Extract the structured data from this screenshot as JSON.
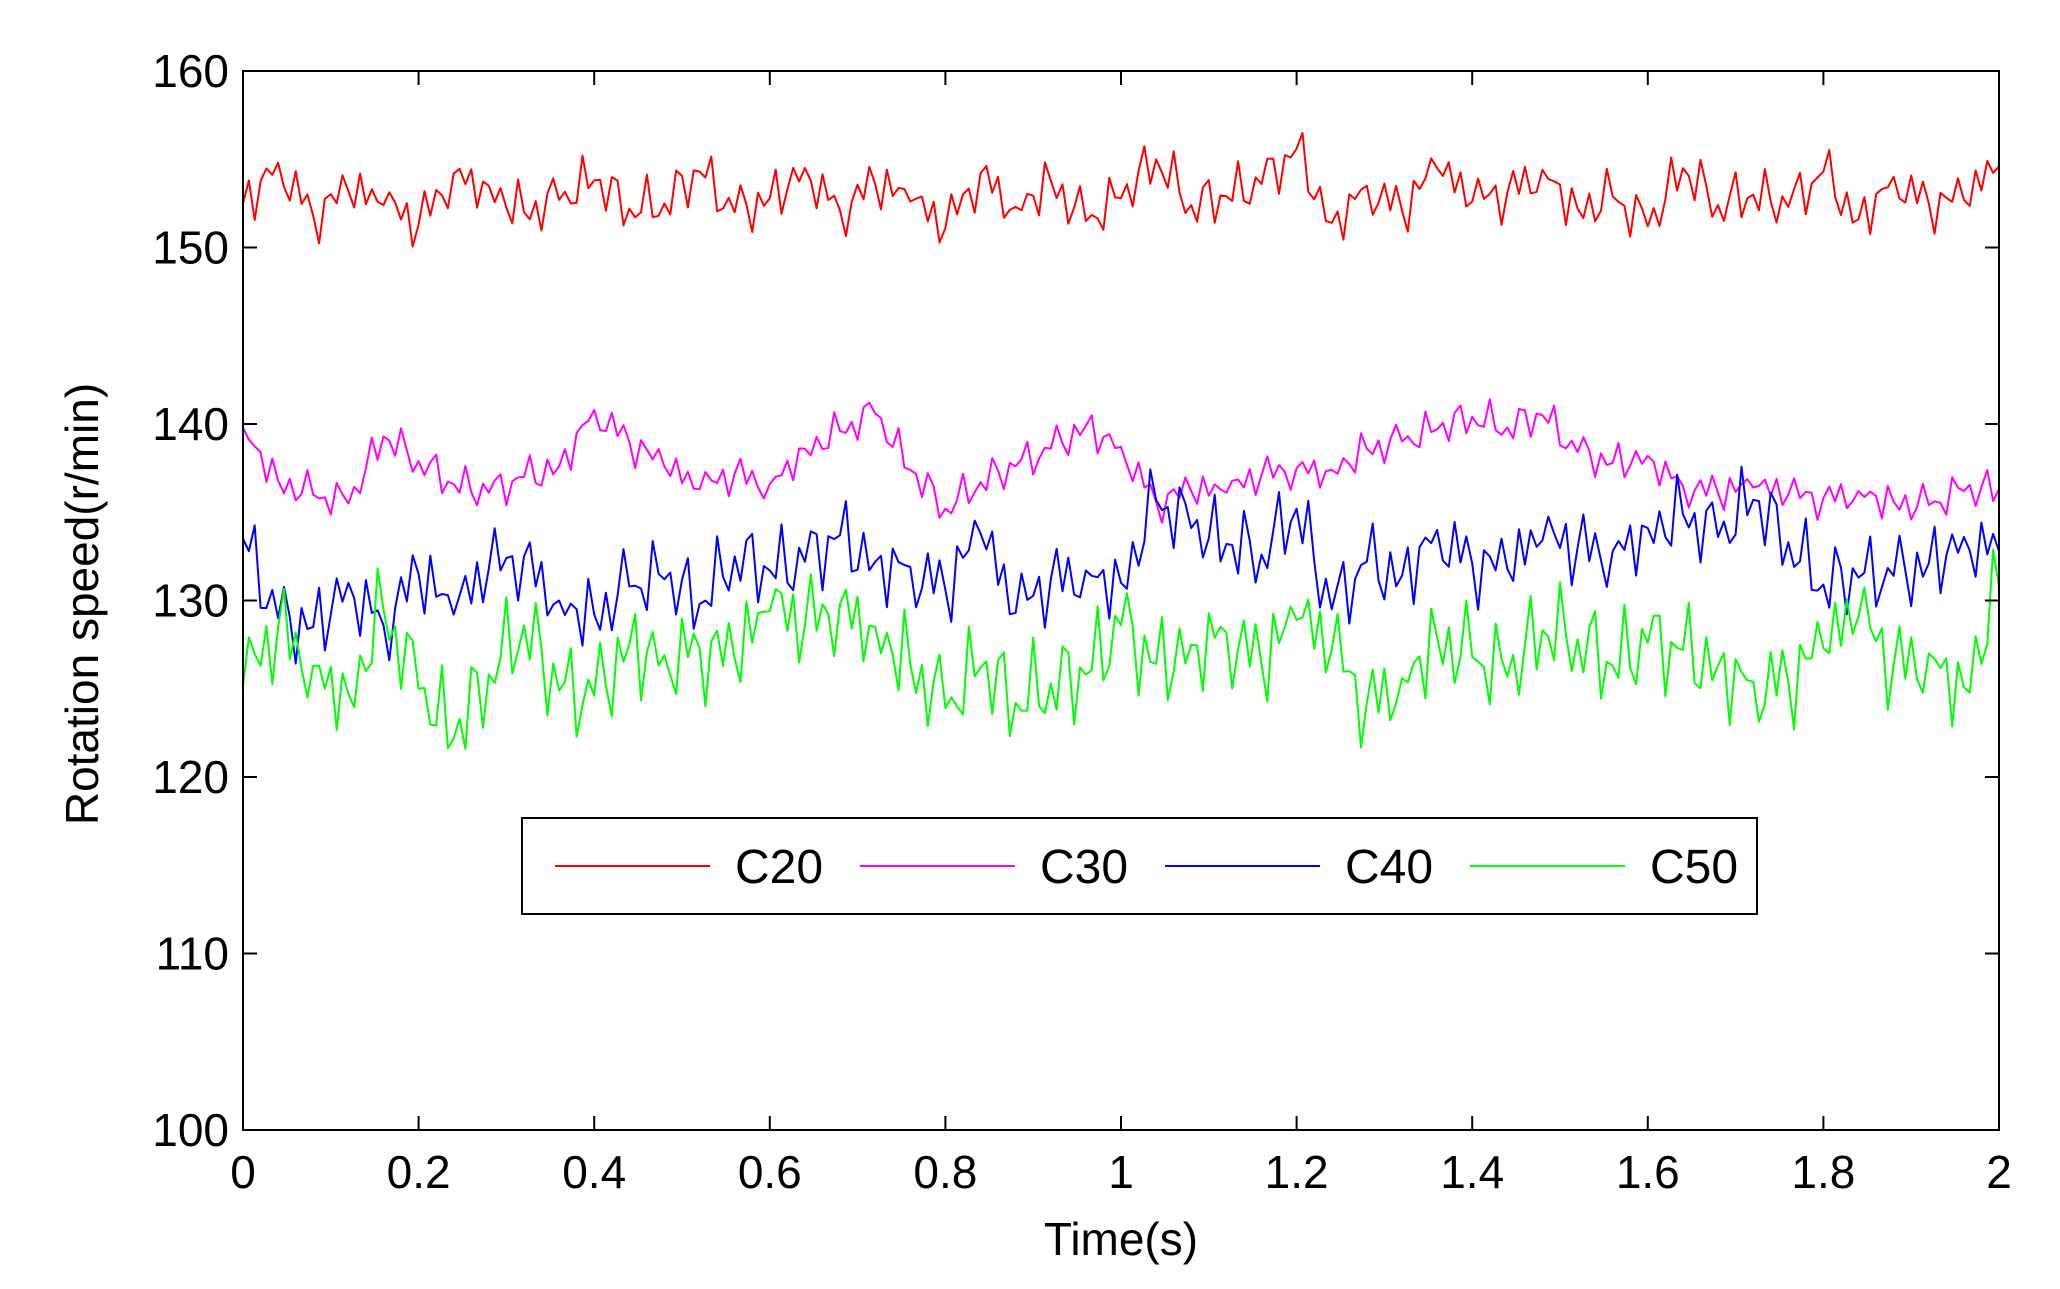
{
  "chart_data": {
    "type": "line",
    "title": "",
    "xlabel": "Time(s)",
    "ylabel": "Rotation speed(r/min)",
    "xlim": [
      0,
      2
    ],
    "ylim": [
      100,
      160
    ],
    "xticks": [
      0,
      0.2,
      0.4,
      0.6,
      0.8,
      1,
      1.2,
      1.4,
      1.6,
      1.8,
      2
    ],
    "xtick_labels": [
      "0",
      "0.2",
      "0.4",
      "0.6",
      "0.8",
      "1",
      "1.2",
      "1.4",
      "1.6",
      "1.8",
      "2"
    ],
    "yticks": [
      100,
      110,
      120,
      130,
      140,
      150,
      160
    ],
    "ytick_labels": [
      "100",
      "110",
      "120",
      "130",
      "140",
      "150",
      "160"
    ],
    "grid": false,
    "legend": {
      "placement": "lower-center",
      "orientation": "horizontal"
    },
    "x": [
      0,
      0.04,
      0.08,
      0.12,
      0.16,
      0.2,
      0.24,
      0.28,
      0.32,
      0.36,
      0.4,
      0.44,
      0.48,
      0.52,
      0.56,
      0.6,
      0.64,
      0.68,
      0.72,
      0.76,
      0.8,
      0.84,
      0.88,
      0.92,
      0.96,
      1,
      1.04,
      1.08,
      1.12,
      1.16,
      1.2,
      1.24,
      1.28,
      1.32,
      1.36,
      1.4,
      1.44,
      1.48,
      1.52,
      1.56,
      1.6,
      1.64,
      1.68,
      1.72,
      1.76,
      1.8,
      1.84,
      1.88,
      1.92,
      1.96,
      2
    ],
    "series": [
      {
        "name": "C20",
        "color": "#ff0000",
        "values": [
          152.5,
          154.8,
          151.8,
          153.2,
          152.4,
          151.3,
          154.2,
          153.5,
          152.0,
          152.7,
          153.8,
          152.2,
          152.5,
          154.3,
          152.0,
          152.8,
          154.5,
          152.1,
          153.6,
          152.6,
          151.1,
          154.2,
          152.3,
          153.8,
          151.5,
          152.8,
          155.0,
          152.4,
          152.9,
          153.6,
          155.6,
          151.4,
          153.5,
          152.1,
          154.5,
          152.6,
          153.1,
          154.4,
          152.2,
          152.9,
          151.2,
          154.5,
          152.4,
          153.0,
          152.3,
          154.3,
          151.6,
          154.0,
          152.5,
          152.7,
          154.6
        ]
      },
      {
        "name": "C30",
        "color": "#ff00ff",
        "values": [
          139.8,
          136.8,
          136.0,
          135.5,
          139.3,
          137.9,
          136.6,
          136.1,
          137.0,
          137.6,
          140.8,
          139.0,
          137.6,
          136.3,
          137.2,
          136.6,
          138.6,
          139.6,
          140.6,
          137.4,
          135.2,
          136.7,
          137.6,
          138.6,
          139.9,
          138.7,
          135.6,
          136.2,
          136.1,
          137.1,
          137.5,
          137.4,
          138.6,
          139.0,
          139.7,
          140.4,
          139.8,
          140.5,
          138.4,
          137.8,
          138.2,
          136.5,
          136.1,
          136.4,
          136.0,
          135.8,
          136.2,
          135.6,
          135.4,
          136.2,
          136.3
        ]
      },
      {
        "name": "C40",
        "color": "#0000ff",
        "values": [
          133.5,
          129.0,
          128.5,
          131.0,
          128.6,
          131.5,
          129.2,
          131.8,
          132.5,
          130.0,
          129.2,
          130.8,
          131.2,
          129.8,
          132.5,
          131.7,
          132.2,
          133.7,
          132.2,
          131.9,
          130.6,
          133.8,
          129.3,
          131.2,
          131.7,
          131.0,
          135.7,
          134.1,
          133.2,
          132.6,
          135.2,
          129.5,
          132.2,
          131.4,
          134.0,
          132.1,
          131.8,
          133.4,
          133.0,
          132.8,
          134.1,
          134.9,
          133.6,
          135.7,
          133.3,
          130.9,
          131.3,
          131.4,
          132.1,
          133.6,
          132.8
        ]
      },
      {
        "name": "C50",
        "color": "#00ff00",
        "values": [
          125.2,
          128.5,
          126.3,
          124.7,
          129.5,
          125.0,
          122.2,
          125.8,
          128.6,
          124.9,
          124.6,
          127.5,
          126.9,
          127.3,
          126.7,
          129.4,
          128.6,
          129.8,
          128.5,
          126.4,
          123.9,
          126.2,
          124.2,
          125.3,
          125.8,
          128.6,
          126.4,
          127.5,
          128.2,
          126.4,
          128.9,
          127.2,
          124.2,
          125.6,
          127.9,
          126.8,
          125.7,
          128.3,
          127.8,
          126.3,
          127.6,
          127.2,
          126.3,
          125.4,
          125.4,
          127.3,
          129.1,
          126.3,
          127.0,
          125.1,
          130.8
        ]
      }
    ]
  }
}
